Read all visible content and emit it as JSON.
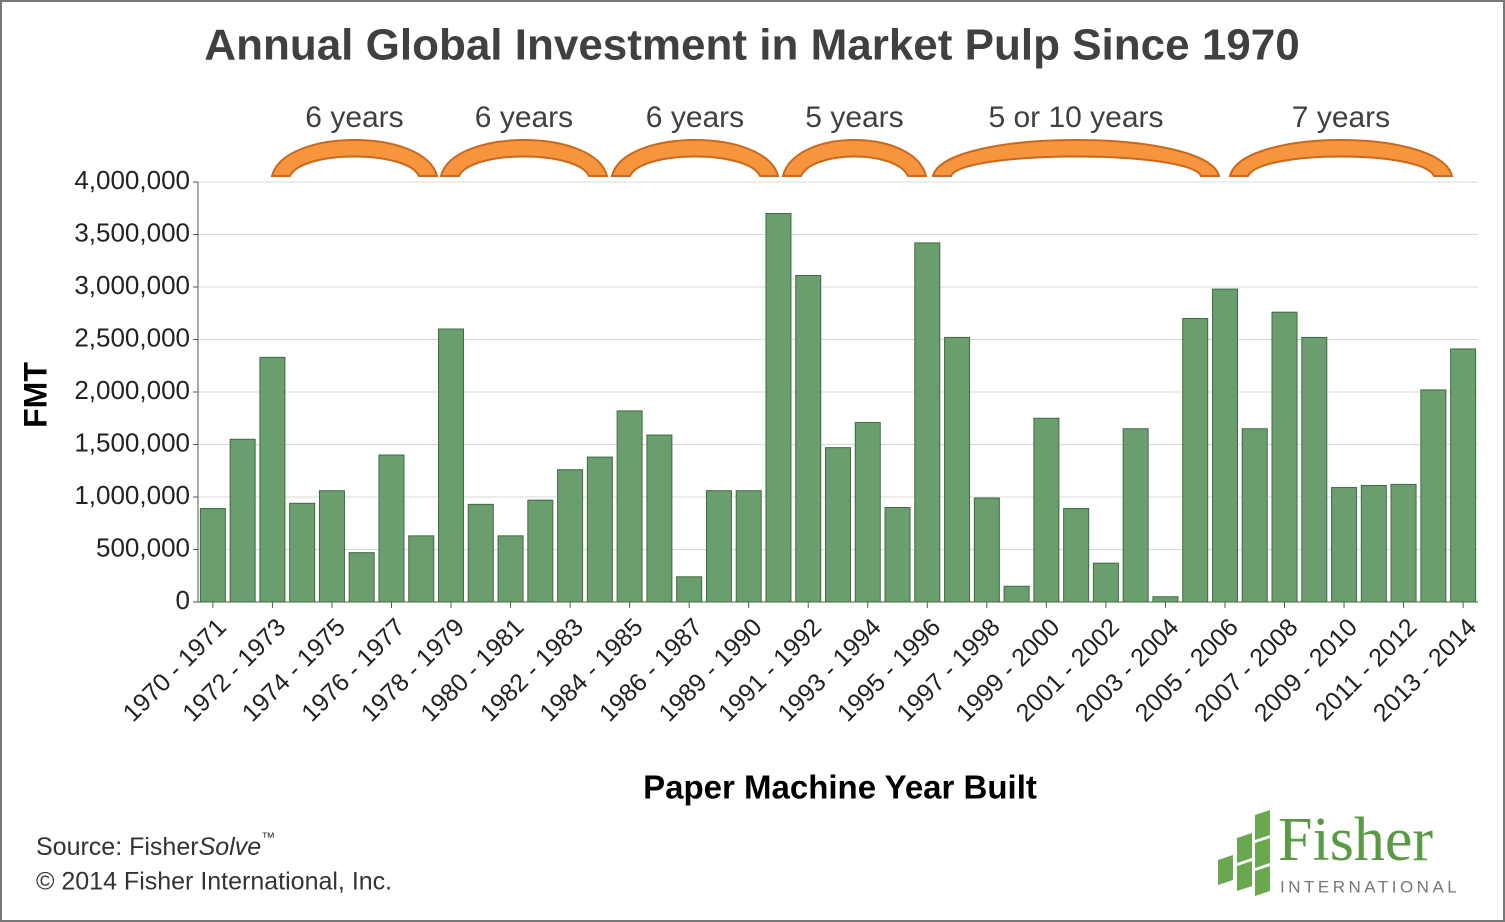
{
  "chart_data": {
    "type": "bar",
    "title": "Annual Global Investment in Market Pulp Since 1970",
    "x_label": "Paper Machine Year Built",
    "y_label": "FMT",
    "categories": [
      "1970 - 1971",
      null,
      "1972 - 1973",
      null,
      "1974 - 1975",
      null,
      "1976 - 1977",
      null,
      "1978 - 1979",
      null,
      "1980 - 1981",
      null,
      "1982 - 1983",
      null,
      "1984 - 1985",
      null,
      "1986 - 1987",
      null,
      "1989 - 1990",
      null,
      "1991 - 1992",
      null,
      "1993 - 1994",
      null,
      "1995 - 1996",
      null,
      "1997 - 1998",
      null,
      "1999 - 2000",
      null,
      "2001 - 2002",
      null,
      "2003 - 2004",
      null,
      "2005 - 2006",
      null,
      "2007 - 2008",
      null,
      "2009 - 2010",
      null,
      "2011 - 2012",
      null,
      "2013 - 2014"
    ],
    "values": [
      890000,
      1550000,
      2330000,
      940000,
      1060000,
      470000,
      1400000,
      630000,
      2600000,
      930000,
      630000,
      970000,
      1260000,
      1380000,
      1820000,
      1590000,
      240000,
      1060000,
      1060000,
      3700000,
      3110000,
      1470000,
      1710000,
      900000,
      3420000,
      2520000,
      990000,
      150000,
      1750000,
      890000,
      370000,
      1650000,
      50000,
      2700000,
      2980000,
      1650000,
      2760000,
      2520000,
      1090000,
      1110000,
      1120000,
      2020000,
      2410000
    ],
    "color": "#6a9e6e",
    "ylim": [
      0,
      4000000
    ],
    "yticks": [
      0,
      {
        "value": 500000,
        "label": "500,000"
      },
      {
        "value": 1000000,
        "label": "1,000,000"
      },
      {
        "value": 1500000,
        "label": "1,500,000"
      },
      {
        "value": 2000000,
        "label": "2,000,000"
      },
      {
        "value": 2500000,
        "label": "2,500,000"
      },
      {
        "value": 3000000,
        "label": "3,000,000"
      },
      {
        "value": 3500000,
        "label": "3,500,000"
      },
      {
        "value": 4000000,
        "label": "4,000,000"
      }
    ],
    "grid": true,
    "annotations": [
      "6 years",
      "6 years",
      "6 years",
      "5 years",
      "5 or 10 years",
      "7 years"
    ],
    "source": {
      "prefix": "Source: Fisher",
      "italic": "Solve",
      "mark": "™"
    },
    "copyright": "© 2014 Fisher International, Inc.",
    "logo": {
      "name": "Fisher",
      "sub": "INTERNATIONAL"
    }
  }
}
